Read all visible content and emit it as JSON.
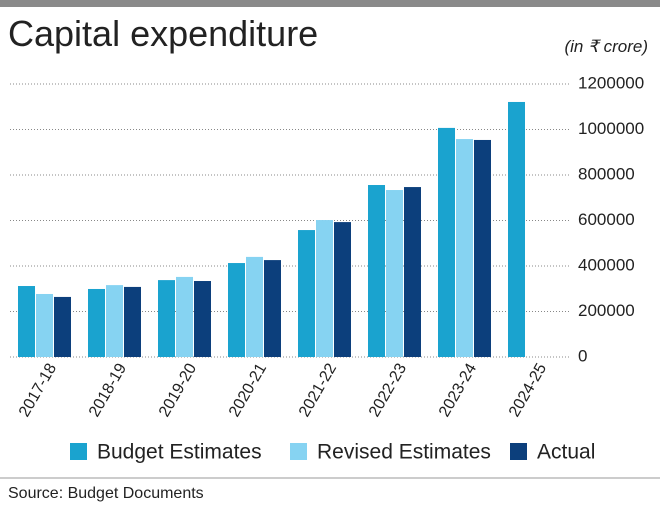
{
  "chart_data": {
    "type": "bar",
    "title": "Capital expenditure",
    "subtitle": "(in ₹ crore)",
    "source": "Source: Budget Documents",
    "categories": [
      "2017-18",
      "2018-19",
      "2019-20",
      "2020-21",
      "2021-22",
      "2022-23",
      "2023-24",
      "2024-25"
    ],
    "series": [
      {
        "name": "Budget Estimates",
        "color": "#1aa3cf",
        "values": [
          312000,
          299000,
          338000,
          413000,
          558000,
          756000,
          1007000,
          1121000
        ]
      },
      {
        "name": "Revised Estimates",
        "color": "#86d3f2",
        "values": [
          277000,
          316000,
          352000,
          440000,
          602000,
          734000,
          958000,
          null
        ]
      },
      {
        "name": "Actual",
        "color": "#0c3f7c",
        "values": [
          264000,
          308000,
          334000,
          426000,
          593000,
          747000,
          954000,
          null
        ]
      }
    ],
    "ylim": [
      0,
      1200000
    ],
    "yticks": [
      0,
      200000,
      400000,
      600000,
      800000,
      1000000,
      1200000
    ],
    "grid": true,
    "legend": "bottom"
  }
}
